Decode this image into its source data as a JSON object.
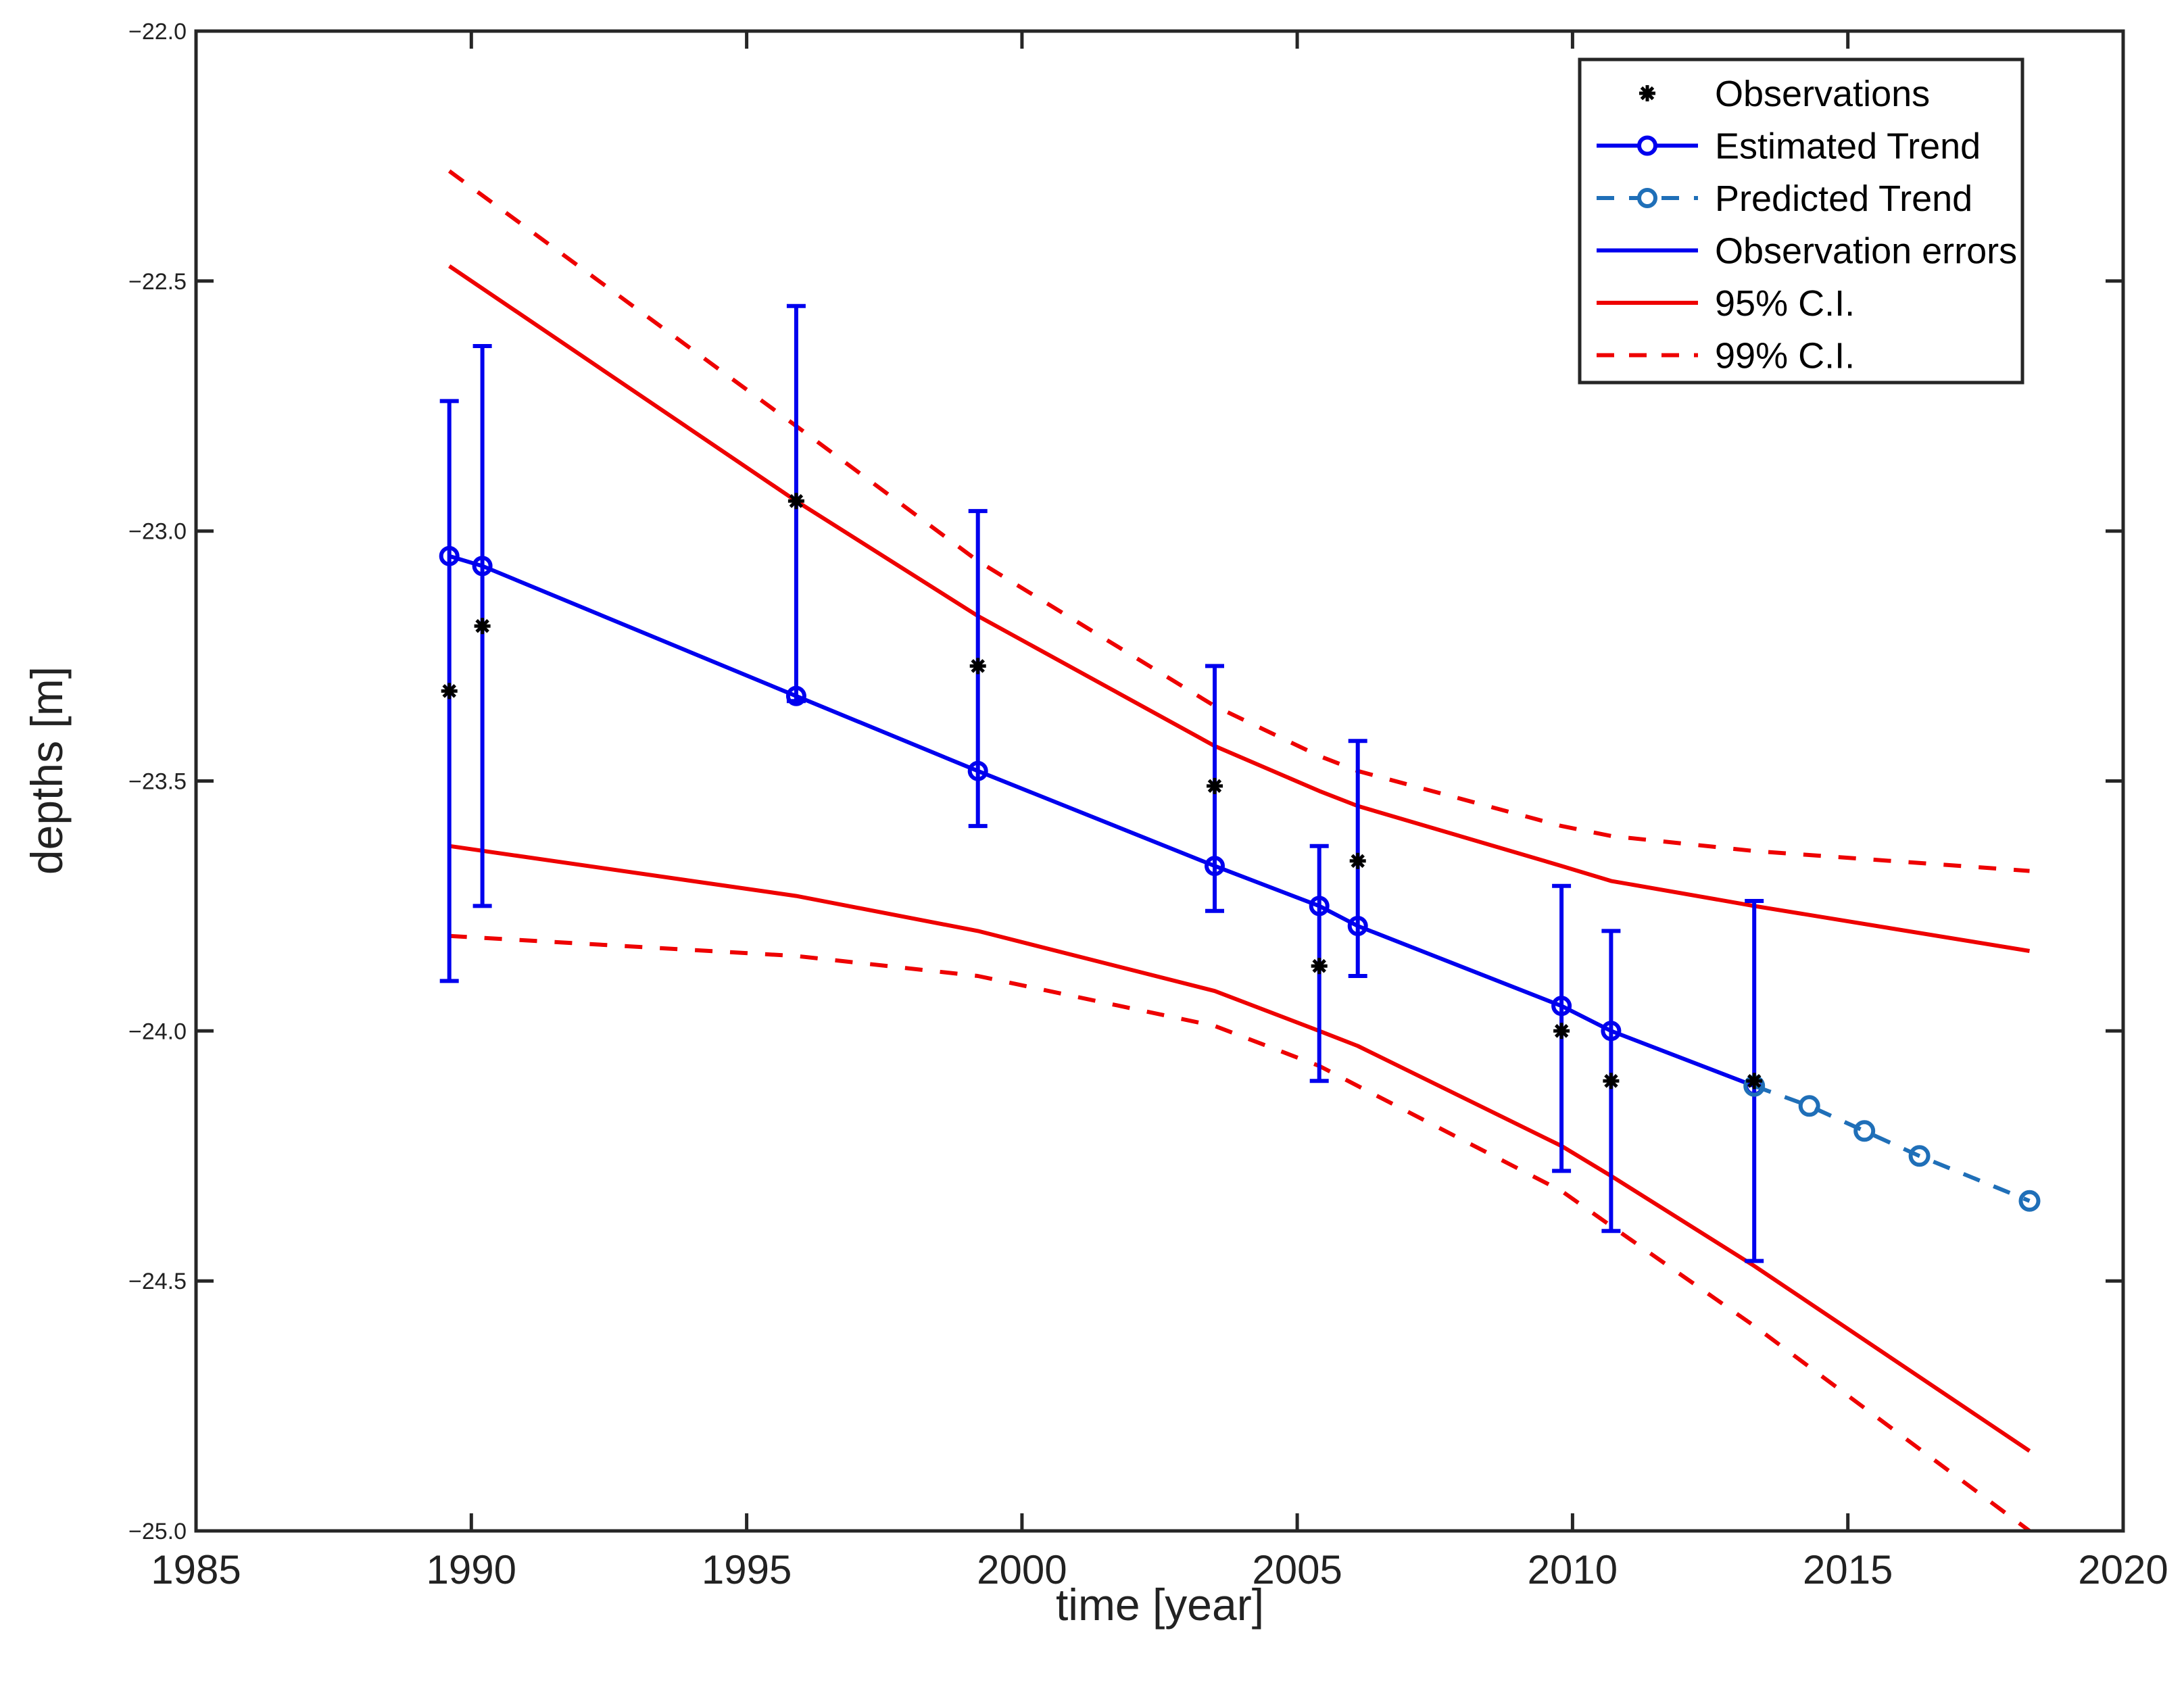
{
  "chart_data": {
    "type": "line",
    "title": "",
    "xlabel": "time [year]",
    "ylabel": "depths [m]",
    "xlim": [
      1985,
      2020
    ],
    "ylim": [
      -25.0,
      -22.0
    ],
    "x_ticks": [
      1985,
      1990,
      1995,
      2000,
      2005,
      2010,
      2015,
      2020
    ],
    "x_tick_labels": [
      "1985",
      "1990",
      "1995",
      "2000",
      "2005",
      "2010",
      "2015",
      "2020"
    ],
    "y_ticks": [
      -22.0,
      -22.5,
      -23.0,
      -23.5,
      -24.0,
      -24.5,
      -25.0
    ],
    "y_tick_labels": [
      "−22.0",
      "−22.5",
      "−23.0",
      "−23.5",
      "−24.0",
      "−24.5",
      "−25.0"
    ],
    "grid": false,
    "legend_position": "top-right",
    "legend": [
      {
        "label": "Observations",
        "style": "asterisk",
        "color": "#000000"
      },
      {
        "label": "Estimated Trend",
        "style": "line-circle",
        "color": "#0000ee"
      },
      {
        "label": "Predicted Trend",
        "style": "dashed-circle",
        "color": "#1f6fb8"
      },
      {
        "label": "Observation errors",
        "style": "line",
        "color": "#0000ee"
      },
      {
        "label": "95% C.I.",
        "style": "line",
        "color": "#ee0000"
      },
      {
        "label": "99% C.I.",
        "style": "dashed",
        "color": "#ee0000"
      }
    ],
    "series": [
      {
        "name": "Observations",
        "color": "#000000",
        "x": [
          1989.6,
          1990.2,
          1995.9,
          1999.2,
          2003.5,
          2005.4,
          2006.1,
          2009.8,
          2010.7,
          2013.3
        ],
        "y": [
          -23.32,
          -23.19,
          -22.94,
          -23.27,
          -23.51,
          -23.87,
          -23.66,
          -24.0,
          -24.1,
          -24.1
        ]
      },
      {
        "name": "Estimated Trend",
        "color": "#0000ee",
        "x": [
          1989.6,
          1990.2,
          1995.9,
          1999.2,
          2003.5,
          2005.4,
          2006.1,
          2009.8,
          2010.7,
          2013.3
        ],
        "y": [
          -23.05,
          -23.07,
          -23.33,
          -23.48,
          -23.67,
          -23.75,
          -23.79,
          -23.95,
          -24.0,
          -24.11
        ]
      },
      {
        "name": "Predicted Trend",
        "color": "#1f6fb8",
        "x": [
          2013.3,
          2014.3,
          2015.3,
          2016.3,
          2018.3
        ],
        "y": [
          -24.11,
          -24.15,
          -24.2,
          -24.25,
          -24.34
        ]
      },
      {
        "name": "Observation errors",
        "color": "#0000ee",
        "x": [
          1989.6,
          1990.2,
          1995.9,
          1999.2,
          2003.5,
          2005.4,
          2006.1,
          2009.8,
          2010.7,
          2013.3
        ],
        "lower": [
          -23.9,
          -23.75,
          -23.34,
          -23.59,
          -23.76,
          -24.1,
          -23.89,
          -24.28,
          -24.4,
          -24.46
        ],
        "upper": [
          -22.74,
          -22.63,
          -22.55,
          -22.96,
          -23.27,
          -23.63,
          -23.42,
          -23.71,
          -23.8,
          -23.74
        ]
      },
      {
        "name": "95% C.I. upper",
        "color": "#ee0000",
        "x": [
          1989.6,
          1995.9,
          1999.2,
          2003.5,
          2005.4,
          2006.1,
          2009.8,
          2010.7,
          2013.3,
          2018.3
        ],
        "y": [
          -22.47,
          -22.94,
          -23.17,
          -23.43,
          -23.52,
          -23.55,
          -23.67,
          -23.7,
          -23.75,
          -23.84
        ]
      },
      {
        "name": "95% C.I. lower",
        "color": "#ee0000",
        "x": [
          1989.6,
          1995.9,
          1999.2,
          2003.5,
          2005.4,
          2006.1,
          2009.8,
          2010.7,
          2013.3,
          2018.3
        ],
        "y": [
          -23.63,
          -23.73,
          -23.8,
          -23.92,
          -24.0,
          -24.03,
          -24.23,
          -24.29,
          -24.47,
          -24.84
        ]
      },
      {
        "name": "99% C.I. upper",
        "color": "#ee0000",
        "x": [
          1989.6,
          1995.9,
          1999.2,
          2003.5,
          2005.4,
          2006.1,
          2009.8,
          2010.7,
          2013.3,
          2018.3
        ],
        "y": [
          -22.28,
          -22.79,
          -23.06,
          -23.35,
          -23.45,
          -23.48,
          -23.59,
          -23.61,
          -23.64,
          -23.68
        ]
      },
      {
        "name": "99% C.I. lower",
        "color": "#ee0000",
        "x": [
          1989.6,
          1995.9,
          1999.2,
          2003.5,
          2005.4,
          2006.1,
          2009.8,
          2010.7,
          2013.3,
          2018.3
        ],
        "y": [
          -23.81,
          -23.85,
          -23.89,
          -23.99,
          -24.07,
          -24.11,
          -24.32,
          -24.39,
          -24.59,
          -25.0
        ]
      }
    ]
  }
}
